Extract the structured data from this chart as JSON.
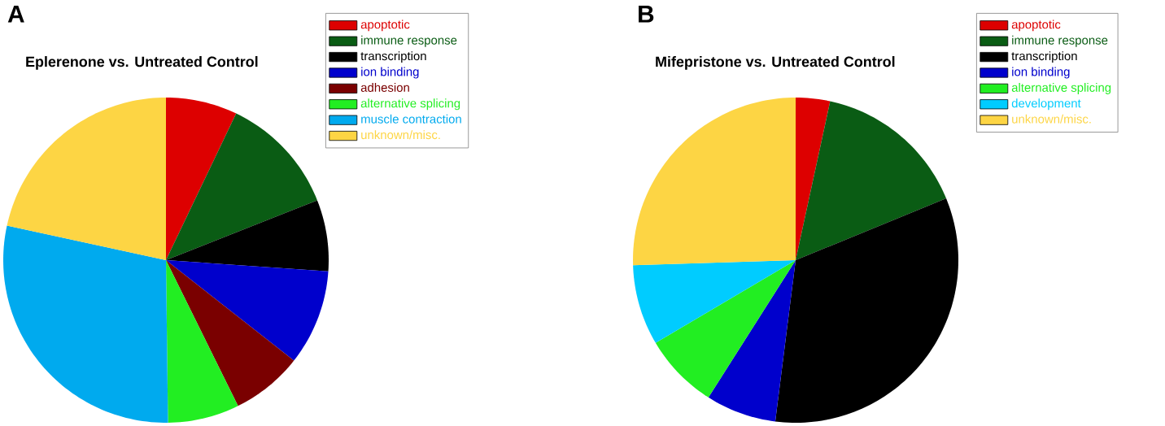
{
  "chart_data": [
    {
      "type": "pie",
      "title": "Eplerenone vs. Untreated Control",
      "annotations": [
        "A"
      ],
      "legend": "top right",
      "categories": [
        "apoptotic",
        "immune response",
        "transcription",
        "ion binding",
        "adhesion",
        "alternative splicing",
        "muscle contraction",
        "unknown/misc."
      ],
      "values": [
        7.1,
        11.9,
        7.1,
        9.5,
        7.1,
        7.1,
        28.6,
        21.6
      ],
      "colors": [
        "#dd0000",
        "#0a5c14",
        "#000000",
        "#0000cc",
        "#7a0000",
        "#22ee22",
        "#00aaee",
        "#fdd544"
      ]
    },
    {
      "type": "pie",
      "title": "Mifepristone vs. Untreated Control",
      "annotations": [
        "B"
      ],
      "legend": "top right",
      "categories": [
        "apoptotic",
        "immune response",
        "transcription",
        "ion binding",
        "alternative splicing",
        "development",
        "unknown/misc."
      ],
      "values": [
        3.4,
        15.4,
        33.2,
        7,
        7.5,
        8,
        25.5
      ],
      "colors": [
        "#dd0000",
        "#0a5c14",
        "#000000",
        "#0000cc",
        "#22ee22",
        "#00ccff",
        "#fdd544"
      ]
    }
  ]
}
